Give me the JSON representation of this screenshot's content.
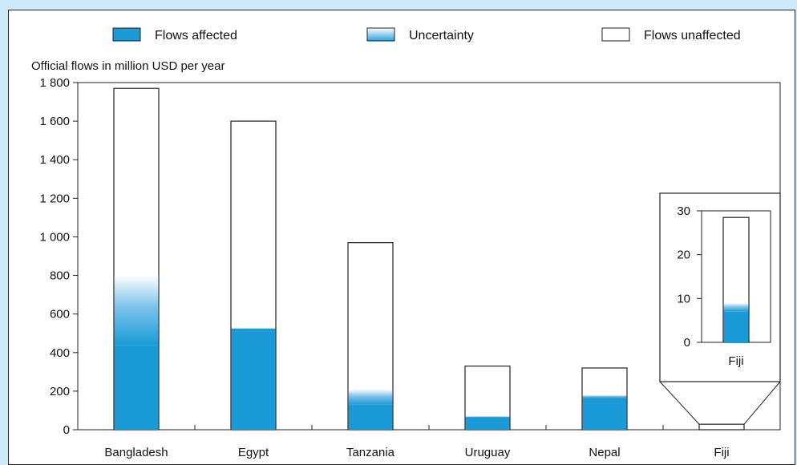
{
  "chart_data": {
    "type": "bar",
    "ylabel": "Official flows in million USD per year",
    "ylim": [
      0,
      1800
    ],
    "yticks": [
      0,
      200,
      400,
      600,
      800,
      1000,
      1200,
      1400,
      1600,
      1800
    ],
    "ytick_labels": [
      "0",
      "200",
      "400",
      "600",
      "800",
      "1 000",
      "1 200",
      "1 400",
      "1 600",
      "1 800"
    ],
    "categories": [
      "Bangladesh",
      "Egypt",
      "Tanzania",
      "Uruguay",
      "Nepal",
      "Fiji"
    ],
    "series": [
      {
        "name": "Flows affected",
        "values": [
          440,
          525,
          130,
          65,
          165,
          7
        ]
      },
      {
        "name": "Uncertainty",
        "values": [
          360,
          0,
          80,
          5,
          15,
          2
        ]
      },
      {
        "name": "Flows unaffected",
        "values": [
          970,
          1075,
          760,
          260,
          140,
          19.5
        ]
      }
    ],
    "totals": [
      1770,
      1600,
      970,
      330,
      320,
      28.5
    ],
    "legend_position": "top",
    "grid": false,
    "colors": {
      "affected": "#1a9bd7",
      "uncertainty": "#4db3e6",
      "unaffected": "#ffffff",
      "outline": "#222222",
      "page_background": "#cfeaf8"
    },
    "inset": {
      "category": "Fiji",
      "ylim": [
        0,
        30
      ],
      "yticks": [
        0,
        10,
        20,
        30
      ],
      "ytick_labels": [
        "0",
        "10",
        "20",
        "30"
      ],
      "label": "Fiji"
    }
  }
}
